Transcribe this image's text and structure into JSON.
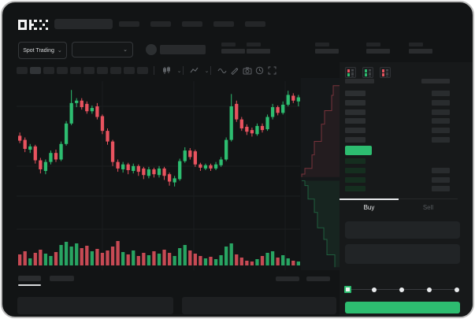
{
  "brand": {
    "logo_text": "OKX"
  },
  "topnav": {
    "search": {
      "placeholder": ""
    },
    "nav_placeholder_count": 5
  },
  "market_header": {
    "mode_selector": {
      "label": "Spot Trading",
      "chevron": "⌄"
    },
    "pair_selector": {
      "value": "",
      "chevron": "⌄"
    },
    "stat_group_count": 5
  },
  "chart_toolbar": {
    "interval_count": 10,
    "active_interval_index": 1,
    "icons": [
      "chart-type-icon",
      "chart-type-chevron-icon",
      "indicators-icon",
      "indicators-chevron-icon",
      "line-style-icon",
      "draw-icon",
      "camera-icon",
      "history-icon",
      "fullscreen-icon"
    ]
  },
  "chart_data": {
    "type": "candlestick",
    "title": "",
    "up_color": "#2dbd70",
    "down_color": "#e8535f",
    "price_range": [
      96.5,
      109.5
    ],
    "grid": true,
    "candles": [
      [
        103.3,
        103.7,
        102.4,
        102.7,
        14
      ],
      [
        102.8,
        103.1,
        101.3,
        101.7,
        18
      ],
      [
        101.6,
        102.3,
        101.2,
        102.0,
        9
      ],
      [
        102.0,
        102.2,
        99.9,
        100.3,
        16
      ],
      [
        100.3,
        100.6,
        98.7,
        99.2,
        20
      ],
      [
        99.0,
        100.4,
        98.6,
        100.1,
        15
      ],
      [
        100.1,
        101.5,
        99.8,
        101.2,
        12
      ],
      [
        101.2,
        101.6,
        100.1,
        100.4,
        17
      ],
      [
        100.4,
        102.6,
        100.2,
        102.3,
        26
      ],
      [
        102.3,
        105.1,
        102.1,
        104.8,
        30
      ],
      [
        104.8,
        108.9,
        104.6,
        107.3,
        24
      ],
      [
        107.3,
        107.9,
        106.8,
        107.6,
        28
      ],
      [
        107.6,
        107.9,
        106.5,
        106.8,
        22
      ],
      [
        107.2,
        107.5,
        106.0,
        106.3,
        25
      ],
      [
        106.3,
        107.0,
        106.0,
        106.7,
        18
      ],
      [
        106.9,
        107.3,
        105.3,
        105.6,
        21
      ],
      [
        105.7,
        105.9,
        103.5,
        103.9,
        16
      ],
      [
        103.9,
        104.2,
        102.2,
        102.6,
        19
      ],
      [
        102.6,
        102.8,
        99.6,
        100.1,
        24
      ],
      [
        100.1,
        100.4,
        98.9,
        99.3,
        31
      ],
      [
        99.2,
        100.1,
        98.8,
        99.8,
        17
      ],
      [
        99.8,
        100.0,
        98.6,
        99.1,
        14
      ],
      [
        99.0,
        99.9,
        98.7,
        99.6,
        19
      ],
      [
        99.6,
        99.8,
        98.4,
        98.9,
        12
      ],
      [
        99.3,
        99.5,
        98.0,
        98.5,
        16
      ],
      [
        98.4,
        99.5,
        98.1,
        99.2,
        13
      ],
      [
        99.2,
        99.4,
        98.2,
        98.6,
        18
      ],
      [
        98.5,
        99.6,
        98.2,
        99.3,
        15
      ],
      [
        99.3,
        99.5,
        97.9,
        98.4,
        20
      ],
      [
        98.6,
        98.8,
        97.2,
        97.7,
        16
      ],
      [
        97.6,
        98.4,
        97.1,
        98.1,
        12
      ],
      [
        98.0,
        100.5,
        97.8,
        100.2,
        22
      ],
      [
        100.2,
        101.9,
        100.0,
        101.5,
        26
      ],
      [
        101.5,
        101.8,
        100.4,
        100.7,
        19
      ],
      [
        101.4,
        101.6,
        99.5,
        99.8,
        15
      ],
      [
        99.8,
        100.0,
        99.0,
        99.4,
        12
      ],
      [
        99.3,
        99.9,
        99.1,
        99.7,
        9
      ],
      [
        99.7,
        99.9,
        99.0,
        99.3,
        11
      ],
      [
        99.3,
        100.1,
        99.1,
        99.8,
        8
      ],
      [
        99.7,
        100.7,
        99.5,
        100.4,
        13
      ],
      [
        100.4,
        103.1,
        100.2,
        102.8,
        24
      ],
      [
        102.8,
        108.4,
        102.6,
        106.9,
        28
      ],
      [
        107.2,
        107.6,
        105.0,
        105.3,
        14
      ],
      [
        105.3,
        105.6,
        103.9,
        104.2,
        10
      ],
      [
        104.4,
        104.7,
        103.4,
        103.8,
        6
      ],
      [
        104.0,
        104.3,
        103.2,
        103.6,
        5
      ],
      [
        103.5,
        104.8,
        103.3,
        104.5,
        8
      ],
      [
        104.5,
        104.8,
        103.7,
        104.0,
        12
      ],
      [
        104.1,
        105.9,
        103.9,
        105.6,
        16
      ],
      [
        105.6,
        107.2,
        105.3,
        106.8,
        18
      ],
      [
        106.8,
        107.0,
        105.8,
        106.1,
        10
      ],
      [
        106.1,
        107.5,
        105.9,
        107.1,
        13
      ],
      [
        107.1,
        108.8,
        106.9,
        108.3,
        9
      ],
      [
        108.2,
        108.5,
        107.3,
        107.6,
        6
      ],
      [
        107.5,
        108.3,
        106.9,
        108.0,
        5
      ]
    ],
    "depth": {
      "ask_color": "#e8535f",
      "bid_color": "#2dbd70",
      "asks": [
        [
          1.0,
          0.04
        ],
        [
          0.82,
          0.09
        ],
        [
          0.78,
          0.17
        ],
        [
          0.6,
          0.24
        ],
        [
          0.52,
          0.33
        ],
        [
          0.34,
          0.4
        ],
        [
          0.28,
          0.47
        ],
        [
          0.1,
          0.5
        ],
        [
          0.02,
          0.515
        ]
      ],
      "bids": [
        [
          0.02,
          0.535
        ],
        [
          0.1,
          0.56
        ],
        [
          0.18,
          0.63
        ],
        [
          0.34,
          0.7
        ],
        [
          0.42,
          0.78
        ],
        [
          0.58,
          0.84
        ],
        [
          0.66,
          0.92
        ],
        [
          0.86,
          0.985
        ]
      ]
    }
  },
  "orderbook": {
    "view_modes": [
      "combined-book",
      "bids-book",
      "asks-book"
    ],
    "ask_row_count": 6,
    "bid_row_count": 4,
    "last_price_highlight_color": "#2dbd70"
  },
  "trade_panel": {
    "tabs": [
      {
        "label": "Buy",
        "active": true
      },
      {
        "label": "Sell",
        "active": false
      }
    ],
    "field_count": 2,
    "slider": {
      "stops": 5,
      "active_stop": 0
    },
    "submit_button": {
      "label": "",
      "color": "#2dbd70"
    }
  },
  "bottom_bar": {
    "tab_count": 2,
    "active_tab_index": 0,
    "right_link_count": 2,
    "panel_count": 2
  }
}
